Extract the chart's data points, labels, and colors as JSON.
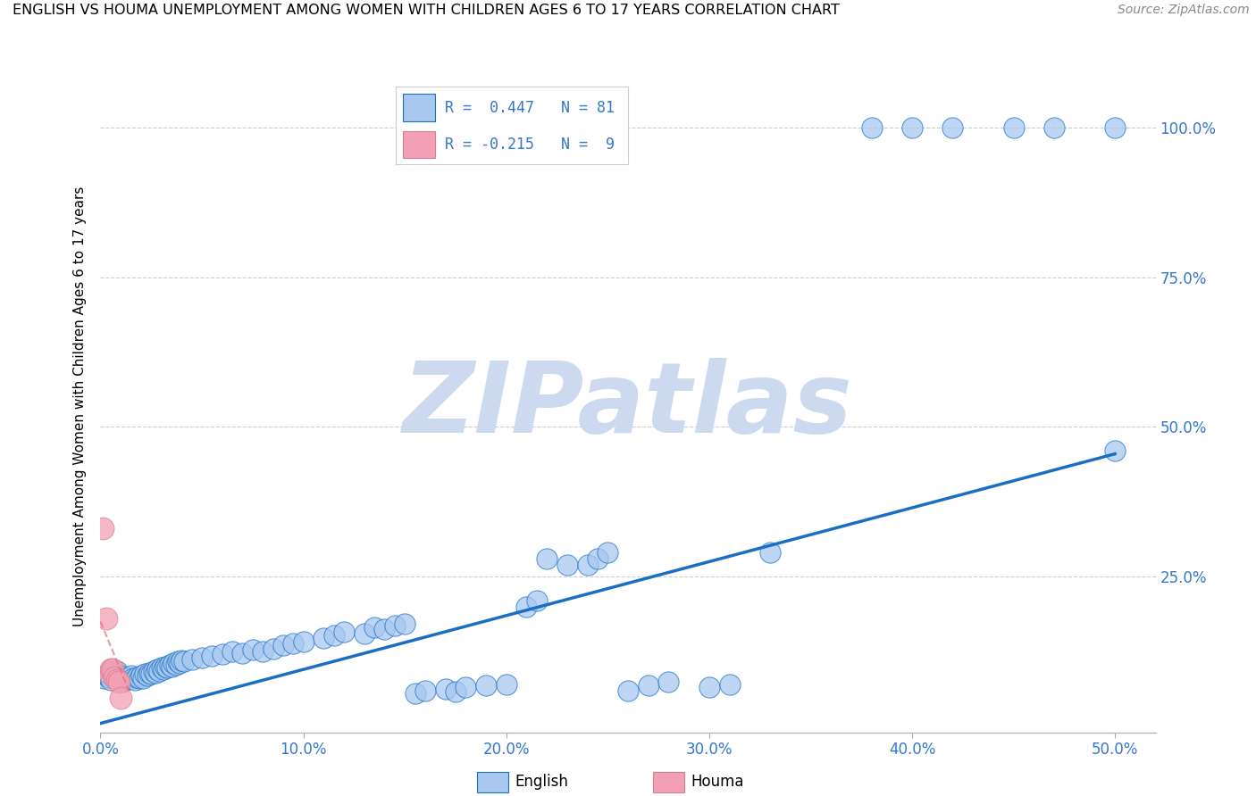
{
  "title": "ENGLISH VS HOUMA UNEMPLOYMENT AMONG WOMEN WITH CHILDREN AGES 6 TO 17 YEARS CORRELATION CHART",
  "source": "Source: ZipAtlas.com",
  "ylabel": "Unemployment Among Women with Children Ages 6 to 17 years",
  "xtick_vals": [
    0.0,
    0.1,
    0.2,
    0.3,
    0.4,
    0.5
  ],
  "xtick_labels": [
    "0.0%",
    "10.0%",
    "20.0%",
    "30.0%",
    "40.0%",
    "50.0%"
  ],
  "ytick_vals": [
    0.25,
    0.5,
    0.75,
    1.0
  ],
  "ytick_labels": [
    "25.0%",
    "50.0%",
    "75.0%",
    "100.0%"
  ],
  "xlim": [
    0,
    0.52
  ],
  "ylim": [
    -0.01,
    1.08
  ],
  "english_color": "#a8c8f0",
  "houma_color": "#f4a0b4",
  "trendline_english_color": "#1a6fc4",
  "trendline_houma_color": "#e07080",
  "watermark": "ZIPatlas",
  "watermark_color": "#ccd9ee",
  "english_x": [
    0.002,
    0.003,
    0.004,
    0.005,
    0.006,
    0.007,
    0.008,
    0.009,
    0.01,
    0.011,
    0.012,
    0.013,
    0.014,
    0.015,
    0.016,
    0.017,
    0.018,
    0.019,
    0.02,
    0.021,
    0.022,
    0.023,
    0.024,
    0.025,
    0.026,
    0.027,
    0.028,
    0.029,
    0.03,
    0.031,
    0.032,
    0.033,
    0.034,
    0.035,
    0.036,
    0.037,
    0.038,
    0.039,
    0.04,
    0.041,
    0.045,
    0.05,
    0.055,
    0.06,
    0.065,
    0.07,
    0.075,
    0.08,
    0.085,
    0.09,
    0.095,
    0.1,
    0.11,
    0.115,
    0.12,
    0.13,
    0.135,
    0.14,
    0.145,
    0.15,
    0.155,
    0.16,
    0.17,
    0.175,
    0.18,
    0.19,
    0.2,
    0.21,
    0.215,
    0.22,
    0.23,
    0.24,
    0.245,
    0.25,
    0.26,
    0.27,
    0.28,
    0.3,
    0.31,
    0.33,
    0.5
  ],
  "english_y": [
    0.08,
    0.085,
    0.082,
    0.078,
    0.09,
    0.088,
    0.092,
    0.08,
    0.085,
    0.075,
    0.078,
    0.082,
    0.08,
    0.085,
    0.08,
    0.078,
    0.082,
    0.08,
    0.085,
    0.08,
    0.088,
    0.085,
    0.09,
    0.088,
    0.092,
    0.09,
    0.095,
    0.092,
    0.098,
    0.095,
    0.1,
    0.098,
    0.102,
    0.1,
    0.105,
    0.102,
    0.108,
    0.105,
    0.11,
    0.108,
    0.112,
    0.115,
    0.118,
    0.12,
    0.125,
    0.122,
    0.128,
    0.125,
    0.13,
    0.135,
    0.138,
    0.142,
    0.148,
    0.152,
    0.158,
    0.155,
    0.165,
    0.162,
    0.168,
    0.172,
    0.055,
    0.06,
    0.062,
    0.058,
    0.065,
    0.068,
    0.07,
    0.2,
    0.21,
    0.28,
    0.27,
    0.27,
    0.28,
    0.29,
    0.06,
    0.068,
    0.075,
    0.065,
    0.07,
    0.29,
    0.46
  ],
  "houma_x": [
    0.001,
    0.003,
    0.004,
    0.005,
    0.006,
    0.007,
    0.008,
    0.009,
    0.01
  ],
  "houma_y": [
    0.33,
    0.18,
    0.09,
    0.095,
    0.095,
    0.082,
    0.078,
    0.075,
    0.048
  ],
  "top_english_x": [
    0.38,
    0.4,
    0.42,
    0.45,
    0.47,
    0.5
  ],
  "top_english_y": [
    1.0,
    1.0,
    1.0,
    1.0,
    1.0,
    1.0
  ],
  "english_trendline": [
    0.0,
    0.5,
    0.005,
    0.455
  ],
  "houma_trendline": [
    0.0,
    0.014,
    0.175,
    0.06
  ]
}
